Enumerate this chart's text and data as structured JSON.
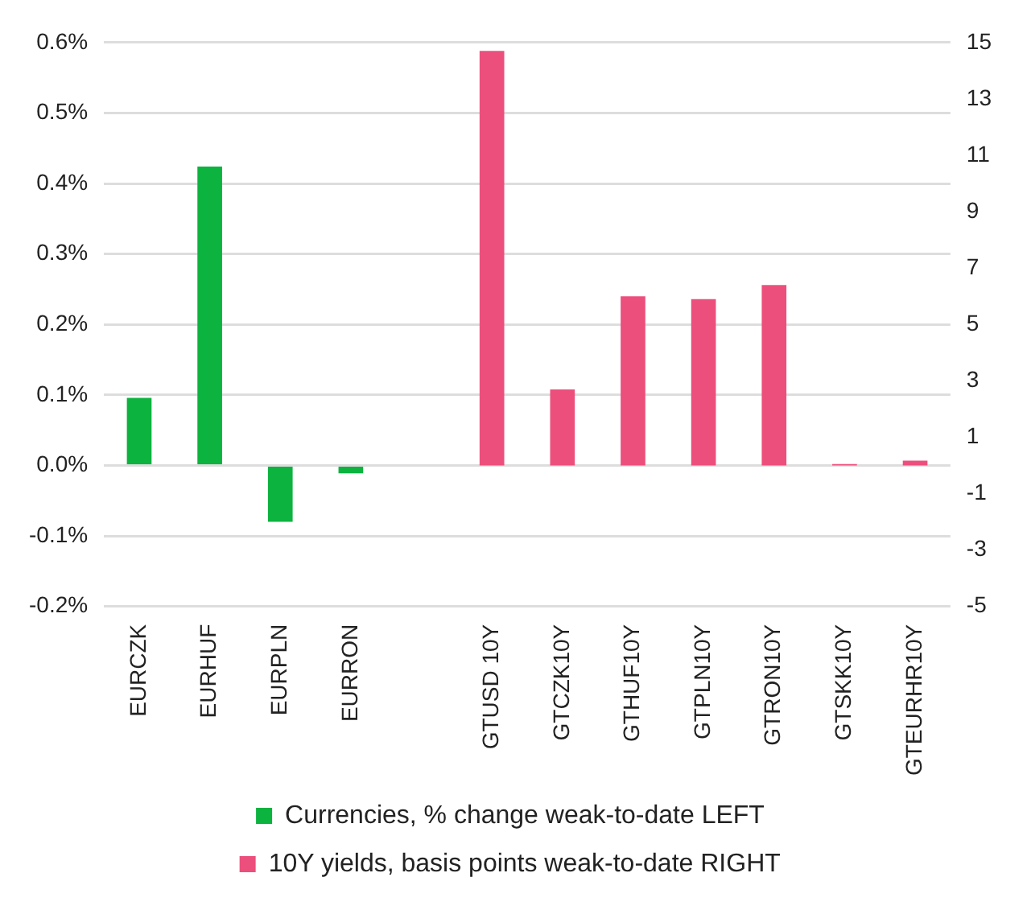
{
  "chart_data": {
    "type": "bar",
    "categories": [
      "EURCZK",
      "EURHUF",
      "EURPLN",
      "EURRON",
      null,
      "GTUSD 10Y",
      "GTCZK10Y",
      "GTHUF10Y",
      "GTPLN10Y",
      "GTRON10Y",
      "GTSKK10Y",
      "GTEURHR10Y"
    ],
    "series": [
      {
        "name": "Currencies, % change weak-to-date LEFT",
        "color": "#0db33f",
        "values": [
          0.096,
          0.424,
          -0.08,
          -0.011,
          null,
          null,
          null,
          null,
          null,
          null,
          null,
          null
        ]
      },
      {
        "name": "10Y yields, basis points weak-to-date RIGHT",
        "color": "#ec4f7c",
        "axis": "y2",
        "values": [
          null,
          null,
          null,
          null,
          null,
          14.7,
          2.7,
          6.0,
          5.9,
          6.4,
          0.05,
          0.17
        ]
      }
    ],
    "ylim": [
      -0.2,
      0.6
    ],
    "yticks": [
      {
        "value": -0.2,
        "label": "-0.2%"
      },
      {
        "value": -0.1,
        "label": "-0.1%"
      },
      {
        "value": 0,
        "label": "0.0%"
      },
      {
        "value": 0.1,
        "label": "0.1%"
      },
      {
        "value": 0.2,
        "label": "0.2%"
      },
      {
        "value": 0.3,
        "label": "0.3%"
      },
      {
        "value": 0.4,
        "label": "0.4%"
      },
      {
        "value": 0.5,
        "label": "0.5%"
      },
      {
        "value": 0.6,
        "label": "0.6%"
      }
    ],
    "y2lim": [
      -5,
      15
    ],
    "y2ticks": [
      -5,
      -3,
      -1,
      1,
      3,
      5,
      7,
      9,
      11,
      13,
      15
    ],
    "grid": "y",
    "legend": "bottom"
  }
}
